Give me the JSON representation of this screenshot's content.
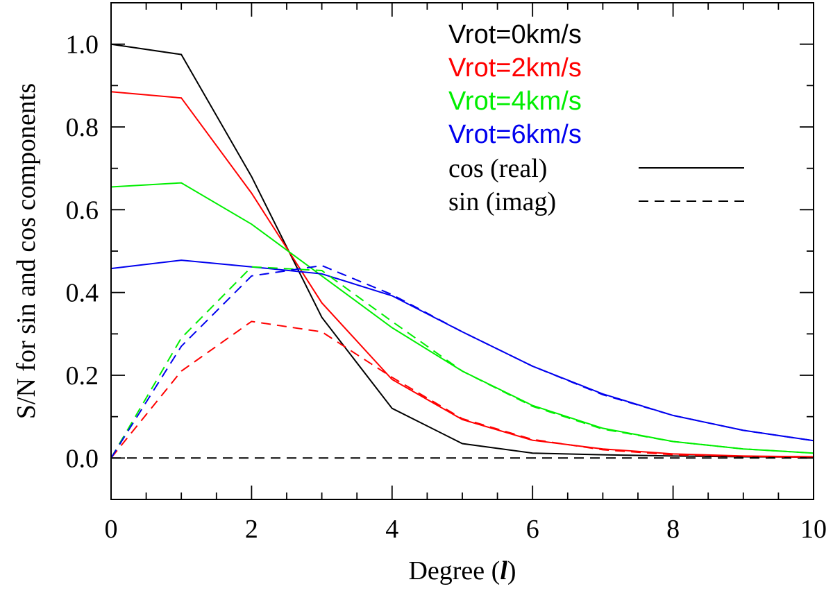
{
  "chart_data": {
    "type": "line",
    "xlabel": "Degree (",
    "xlabel_symbol": "l",
    "xlabel_suffix": ")",
    "ylabel": "S/N for sin and cos components",
    "xlim": [
      0,
      10
    ],
    "ylim": [
      -0.1,
      1.1
    ],
    "x_ticks": [
      0,
      2,
      4,
      6,
      8,
      10
    ],
    "x_tick_labels": [
      "0",
      "2",
      "4",
      "6",
      "8",
      "10"
    ],
    "y_ticks": [
      0.0,
      0.2,
      0.4,
      0.6,
      0.8,
      1.0
    ],
    "y_tick_labels": [
      "0.0",
      "0.2",
      "0.4",
      "0.6",
      "0.8",
      "1.0"
    ],
    "x": [
      0,
      1,
      2,
      3,
      4,
      5,
      6,
      7,
      8,
      9,
      10
    ],
    "legend_placement": "top-right",
    "series": [
      {
        "name": "Vrot=0km/s",
        "color": "#000000",
        "component": "cos",
        "values": [
          1.0,
          0.975,
          0.68,
          0.34,
          0.12,
          0.035,
          0.012,
          0.008,
          0.005,
          0.003,
          0.002
        ]
      },
      {
        "name": "Vrot=2km/s",
        "color": "#ff0000",
        "component": "cos",
        "values": [
          0.885,
          0.87,
          0.64,
          0.375,
          0.19,
          0.093,
          0.043,
          0.022,
          0.01,
          0.005,
          0.003
        ]
      },
      {
        "name": "Vrot=4km/s",
        "color": "#00ee00",
        "component": "cos",
        "values": [
          0.655,
          0.665,
          0.565,
          0.44,
          0.315,
          0.21,
          0.127,
          0.072,
          0.04,
          0.022,
          0.012
        ]
      },
      {
        "name": "Vrot=6km/s",
        "color": "#0000ee",
        "component": "cos",
        "values": [
          0.458,
          0.478,
          0.462,
          0.445,
          0.392,
          0.305,
          0.222,
          0.155,
          0.103,
          0.067,
          0.042
        ]
      },
      {
        "name": "Vrot=0km/s",
        "color": "#000000",
        "component": "sin",
        "values": [
          0,
          0,
          0,
          0,
          0,
          0,
          0,
          0,
          0,
          0,
          0
        ]
      },
      {
        "name": "Vrot=2km/s",
        "color": "#ff0000",
        "component": "sin",
        "values": [
          0.0,
          0.21,
          0.33,
          0.305,
          0.195,
          0.095,
          0.045,
          0.02,
          0.008,
          0.004,
          0.002
        ]
      },
      {
        "name": "Vrot=4km/s",
        "color": "#00ee00",
        "component": "sin",
        "values": [
          0.0,
          0.29,
          0.462,
          0.453,
          0.33,
          0.21,
          0.125,
          0.07,
          0.04,
          0.022,
          0.012
        ]
      },
      {
        "name": "Vrot=6km/s",
        "color": "#0000ee",
        "component": "sin",
        "values": [
          0.0,
          0.27,
          0.44,
          0.465,
          0.395,
          0.305,
          0.222,
          0.153,
          0.103,
          0.067,
          0.042
        ]
      }
    ],
    "legend": {
      "entries": [
        {
          "label": "Vrot=0km/s",
          "color": "#000000"
        },
        {
          "label": "Vrot=2km/s",
          "color": "#ff0000"
        },
        {
          "label": "Vrot=4km/s",
          "color": "#00ee00"
        },
        {
          "label": "Vrot=6km/s",
          "color": "#0000ee"
        }
      ],
      "styles": [
        {
          "label": "cos (real)",
          "dash": "solid"
        },
        {
          "label": "sin (imag)",
          "dash": "dashed"
        }
      ]
    }
  }
}
